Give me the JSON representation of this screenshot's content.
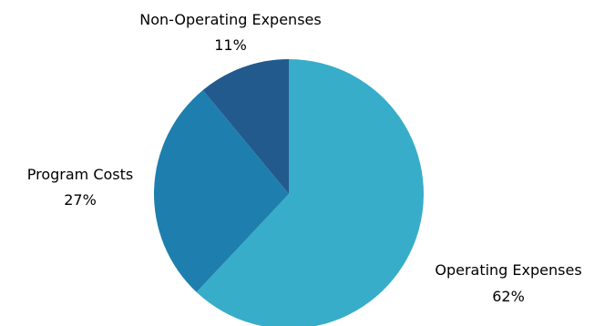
{
  "chart_data": {
    "type": "pie",
    "title": "",
    "slices": [
      {
        "label": "Operating Expenses",
        "value": 62,
        "display": "62%",
        "color": "#37ADC9"
      },
      {
        "label": "Program Costs",
        "value": 27,
        "display": "27%",
        "color": "#1E7FAE"
      },
      {
        "label": "Non-Operating Expenses",
        "value": 11,
        "display": "11%",
        "color": "#225A8E"
      }
    ],
    "start": "12 o'clock",
    "direction": "clockwise",
    "legend": "none",
    "labels": "outside"
  }
}
